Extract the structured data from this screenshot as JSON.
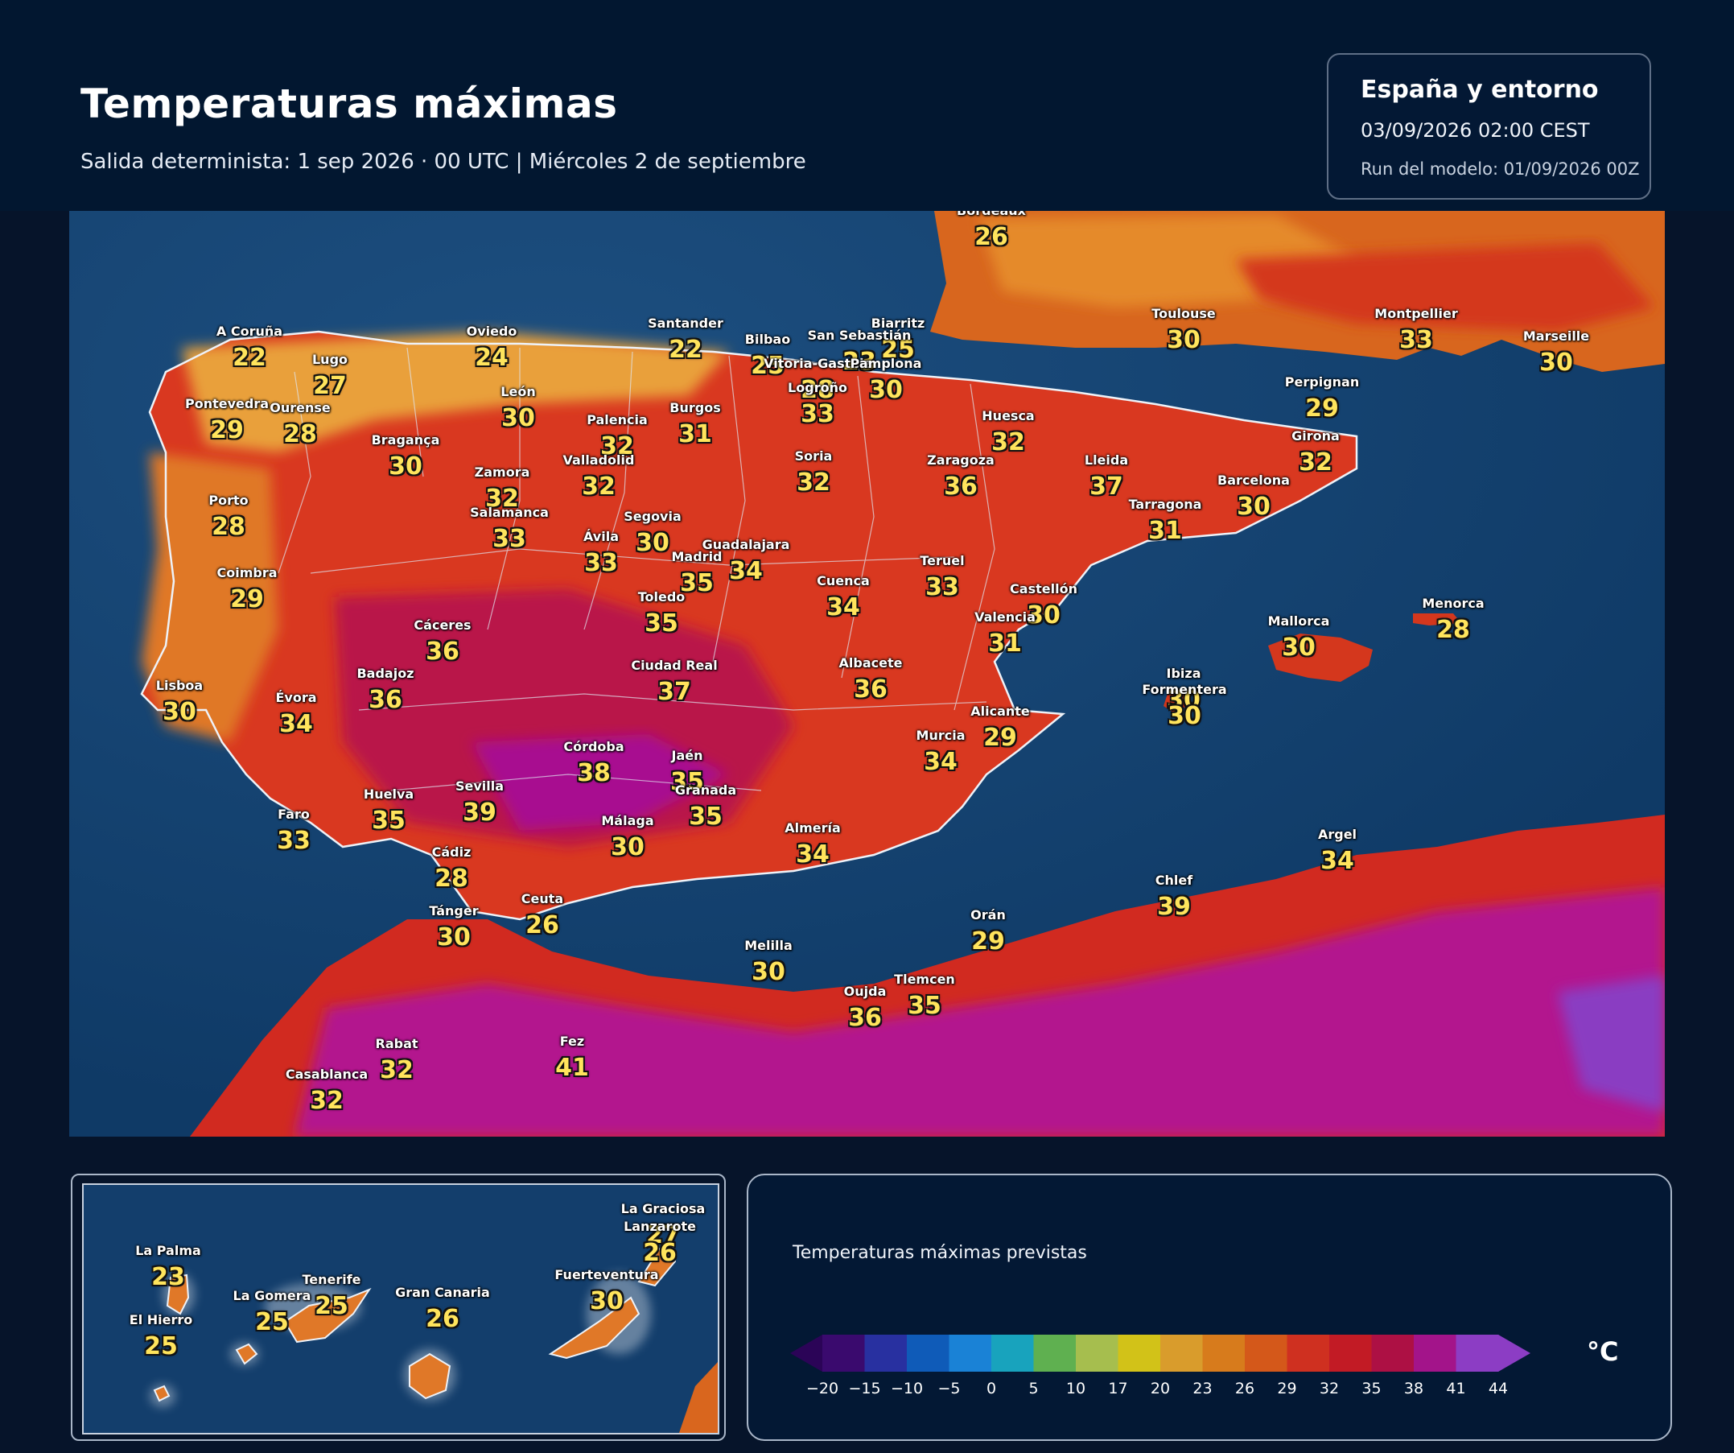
{
  "header": {
    "title": "Temperaturas máximas",
    "subtitle": "Salida determinista: 1 sep 2026 · 00 UTC  |  Miércoles 2 de septiembre"
  },
  "info": {
    "region": "España y entorno",
    "datetime": "03/09/2026  02:00 CEST",
    "run": "Run del modelo: 01/09/2026 00Z"
  },
  "legend": {
    "title": "Temperaturas máximas previstas",
    "unit": "°C",
    "ticks": [
      "−20",
      "−15",
      "−10",
      "−5",
      "0",
      "5",
      "10",
      "17",
      "20",
      "23",
      "26",
      "29",
      "32",
      "35",
      "38",
      "41",
      "44"
    ],
    "colors": [
      "#3a0a6e",
      "#2830a0",
      "#0f5bb8",
      "#1a82d6",
      "#18a3bd",
      "#5fb050",
      "#a6be4e",
      "#d2c218",
      "#d99c2c",
      "#d77b1c",
      "#d4581a",
      "#cf3020",
      "#c21b25",
      "#ad1044",
      "#a3148a",
      "#8c3dc4"
    ],
    "arrow_left_color": "#2b0457",
    "arrow_right_color": "#8c3dc4"
  },
  "cities": [
    {
      "name": "Bordeaux",
      "temp": "26"
    },
    {
      "name": "Toulouse",
      "temp": "30"
    },
    {
      "name": "Montpellier",
      "temp": "33"
    },
    {
      "name": "Marseille",
      "temp": "30"
    },
    {
      "name": "Biarritz",
      "temp": "25"
    },
    {
      "name": "A Coruña",
      "temp": "22"
    },
    {
      "name": "Lugo",
      "temp": "27"
    },
    {
      "name": "Oviedo",
      "temp": "24"
    },
    {
      "name": "Santander",
      "temp": "22"
    },
    {
      "name": "Bilbao",
      "temp": "25"
    },
    {
      "name": "San Sebastián",
      "temp": "23"
    },
    {
      "name": "Vitoria-Gasteiz",
      "temp": "28"
    },
    {
      "name": "Pamplona",
      "temp": "30"
    },
    {
      "name": "Logroño",
      "temp": "33"
    },
    {
      "name": "Pontevedra",
      "temp": "29"
    },
    {
      "name": "Ourense",
      "temp": "28"
    },
    {
      "name": "León",
      "temp": "30"
    },
    {
      "name": "Burgos",
      "temp": "31"
    },
    {
      "name": "Palencia",
      "temp": "32"
    },
    {
      "name": "Huesca",
      "temp": "32"
    },
    {
      "name": "Perpignan",
      "temp": "29"
    },
    {
      "name": "Girona",
      "temp": "32"
    },
    {
      "name": "Bragança",
      "temp": "30"
    },
    {
      "name": "Zamora",
      "temp": "32"
    },
    {
      "name": "Valladolid",
      "temp": "32"
    },
    {
      "name": "Soria",
      "temp": "32"
    },
    {
      "name": "Zaragoza",
      "temp": "36"
    },
    {
      "name": "Lleida",
      "temp": "37"
    },
    {
      "name": "Barcelona",
      "temp": "30"
    },
    {
      "name": "Tarragona",
      "temp": "31"
    },
    {
      "name": "Porto",
      "temp": "28"
    },
    {
      "name": "Salamanca",
      "temp": "33"
    },
    {
      "name": "Segovia",
      "temp": "30"
    },
    {
      "name": "Ávila",
      "temp": "33"
    },
    {
      "name": "Guadalajara",
      "temp": "34"
    },
    {
      "name": "Madrid",
      "temp": "35"
    },
    {
      "name": "Coimbra",
      "temp": "29"
    },
    {
      "name": "Teruel",
      "temp": "33"
    },
    {
      "name": "Toledo",
      "temp": "35"
    },
    {
      "name": "Cuenca",
      "temp": "34"
    },
    {
      "name": "Castellón",
      "temp": "30"
    },
    {
      "name": "Valencia",
      "temp": "31"
    },
    {
      "name": "Cáceres",
      "temp": "36"
    },
    {
      "name": "Mallorca",
      "temp": "30"
    },
    {
      "name": "Menorca",
      "temp": "28"
    },
    {
      "name": "Badajoz",
      "temp": "36"
    },
    {
      "name": "Ciudad Real",
      "temp": "37"
    },
    {
      "name": "Albacete",
      "temp": "36"
    },
    {
      "name": "Ibiza",
      "temp": "30"
    },
    {
      "name": "Formentera",
      "temp": "30"
    },
    {
      "name": "Lisboa",
      "temp": "30"
    },
    {
      "name": "Évora",
      "temp": "34"
    },
    {
      "name": "Alicante",
      "temp": "29"
    },
    {
      "name": "Murcia",
      "temp": "34"
    },
    {
      "name": "Córdoba",
      "temp": "38"
    },
    {
      "name": "Jaén",
      "temp": "35"
    },
    {
      "name": "Huelva",
      "temp": "35"
    },
    {
      "name": "Sevilla",
      "temp": "39"
    },
    {
      "name": "Granada",
      "temp": "35"
    },
    {
      "name": "Faro",
      "temp": "33"
    },
    {
      "name": "Almería",
      "temp": "34"
    },
    {
      "name": "Málaga",
      "temp": "30"
    },
    {
      "name": "Cádiz",
      "temp": "28"
    },
    {
      "name": "Argel",
      "temp": "34"
    },
    {
      "name": "Chlef",
      "temp": "39"
    },
    {
      "name": "Orán",
      "temp": "29"
    },
    {
      "name": "Tánger",
      "temp": "30"
    },
    {
      "name": "Ceuta",
      "temp": "26"
    },
    {
      "name": "Melilla",
      "temp": "30"
    },
    {
      "name": "Tlemcen",
      "temp": "35"
    },
    {
      "name": "Oujda",
      "temp": "36"
    },
    {
      "name": "Rabat",
      "temp": "32"
    },
    {
      "name": "Fez",
      "temp": "41"
    },
    {
      "name": "Casablanca",
      "temp": "32"
    }
  ],
  "canarias": [
    {
      "name": "La Graciosa",
      "temp": "27"
    },
    {
      "name": "Lanzarote",
      "temp": "26"
    },
    {
      "name": "La Palma",
      "temp": "23"
    },
    {
      "name": "Tenerife",
      "temp": "25"
    },
    {
      "name": "La Gomera",
      "temp": "25"
    },
    {
      "name": "Gran Canaria",
      "temp": "26"
    },
    {
      "name": "Fuerteventura",
      "temp": "30"
    },
    {
      "name": "El Hierro",
      "temp": "25"
    }
  ]
}
